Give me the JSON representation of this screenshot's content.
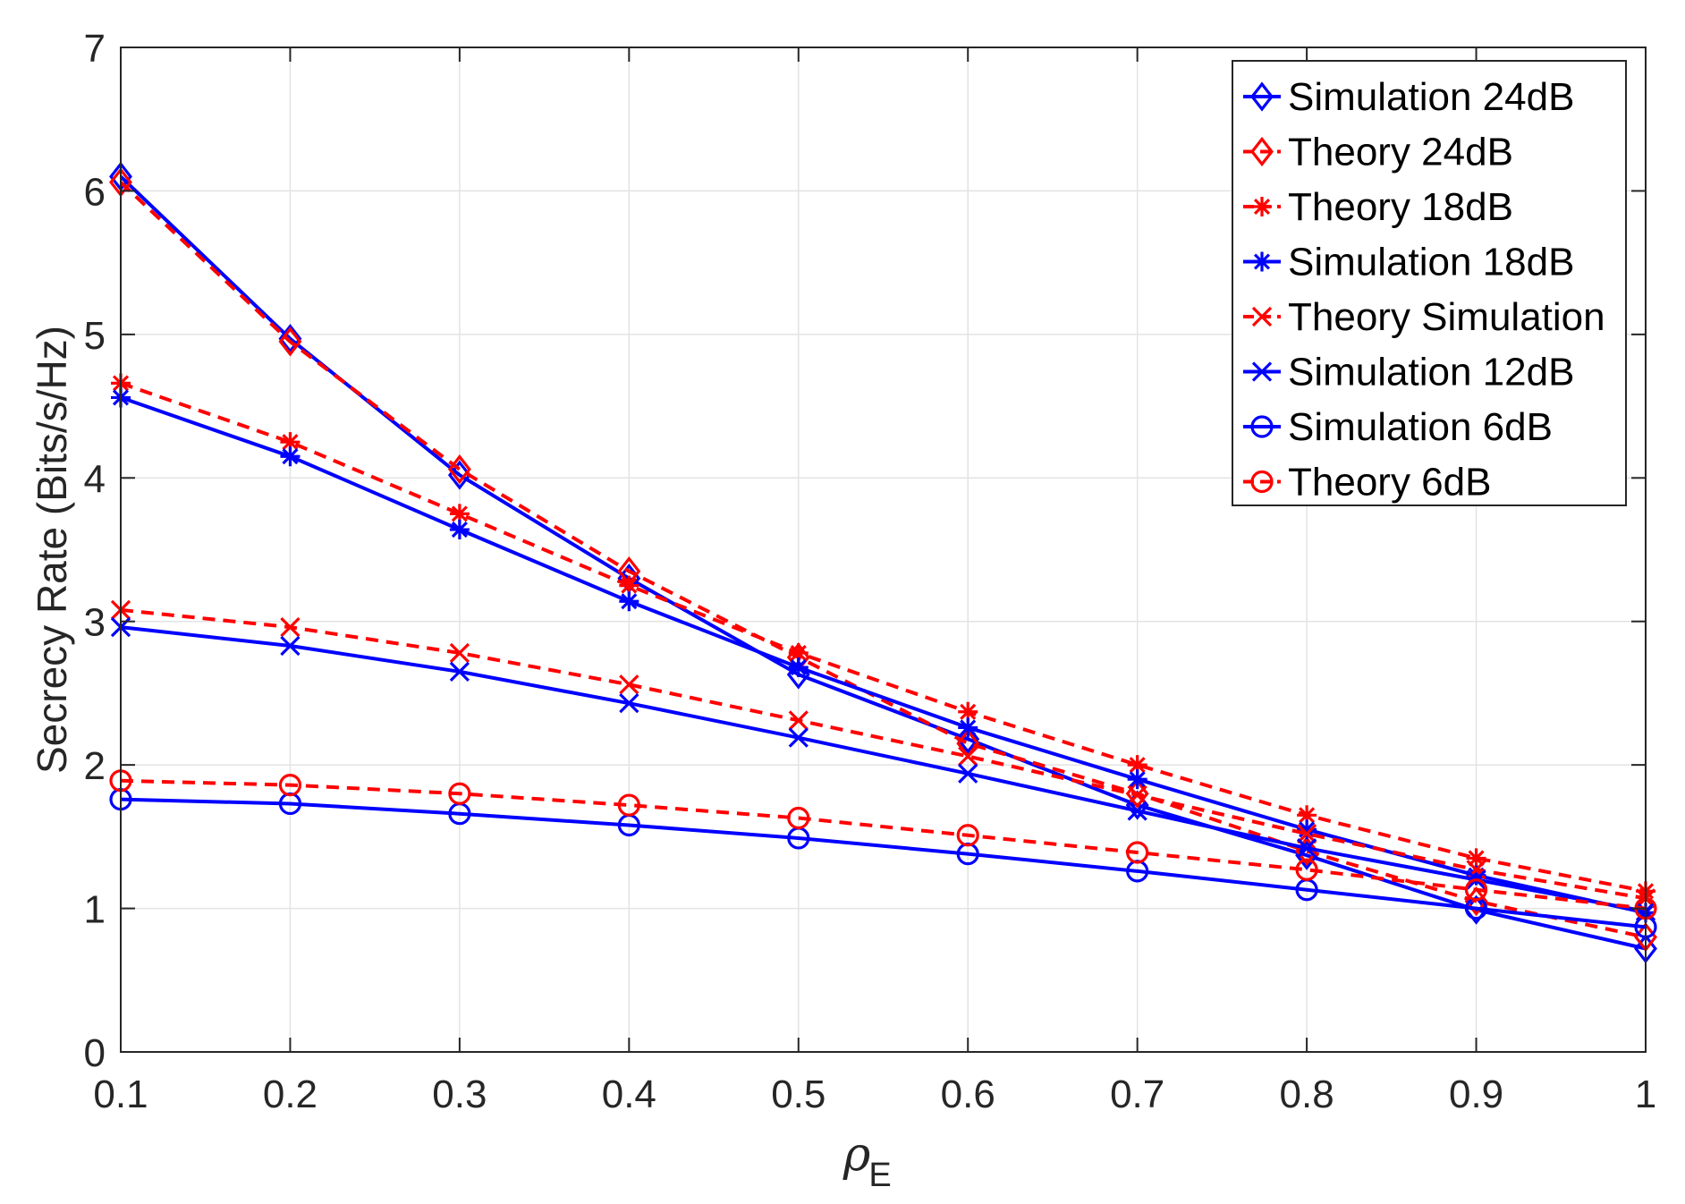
{
  "chart_data": {
    "type": "line",
    "title": "",
    "xlabel": {
      "symbol": "ρ",
      "subscript": "E"
    },
    "ylabel": "Secrecy Rate (Bits/s/Hz)",
    "xlim": [
      0.1,
      1
    ],
    "ylim": [
      0,
      7
    ],
    "grid": true,
    "legend_position": "top-right",
    "x": [
      0.1,
      0.2,
      0.3,
      0.4,
      0.5,
      0.6,
      0.7,
      0.8,
      0.9,
      1.0
    ],
    "x_ticks": [
      "0.1",
      "0.2",
      "0.3",
      "0.4",
      "0.5",
      "0.6",
      "0.7",
      "0.8",
      "0.9",
      "1"
    ],
    "y_ticks": [
      "0",
      "1",
      "2",
      "3",
      "4",
      "5",
      "6",
      "7"
    ],
    "series": [
      {
        "name": "Simulation 24dB",
        "color": "#0000ff",
        "dashed": false,
        "marker": "diamond",
        "values": [
          6.1,
          4.97,
          4.02,
          3.3,
          2.63,
          2.18,
          1.72,
          1.37,
          0.99,
          0.72
        ]
      },
      {
        "name": "Theory 24dB",
        "color": "#ff0000",
        "dashed": true,
        "marker": "diamond",
        "values": [
          6.06,
          4.95,
          4.06,
          3.35,
          2.75,
          2.15,
          1.8,
          1.4,
          1.05,
          0.8
        ]
      },
      {
        "name": "Theory 18dB",
        "color": "#ff0000",
        "dashed": true,
        "marker": "star",
        "values": [
          4.66,
          4.25,
          3.75,
          3.25,
          2.78,
          2.37,
          2.0,
          1.65,
          1.35,
          1.12
        ]
      },
      {
        "name": "Simulation 18dB",
        "color": "#0000ff",
        "dashed": false,
        "marker": "star",
        "values": [
          4.56,
          4.15,
          3.64,
          3.14,
          2.68,
          2.26,
          1.9,
          1.55,
          1.23,
          0.97
        ]
      },
      {
        "name": "Theory Simulation",
        "color": "#ff0000",
        "dashed": true,
        "marker": "x",
        "values": [
          3.08,
          2.96,
          2.78,
          2.56,
          2.31,
          2.06,
          1.79,
          1.52,
          1.27,
          1.07
        ]
      },
      {
        "name": "Simulation 12dB",
        "color": "#0000ff",
        "dashed": false,
        "marker": "x",
        "values": [
          2.96,
          2.83,
          2.65,
          2.43,
          2.19,
          1.94,
          1.68,
          1.42,
          1.2,
          0.98
        ]
      },
      {
        "name": "Simulation 6dB",
        "color": "#0000ff",
        "dashed": false,
        "marker": "circle",
        "values": [
          1.76,
          1.73,
          1.66,
          1.58,
          1.49,
          1.38,
          1.26,
          1.13,
          1.0,
          0.87
        ]
      },
      {
        "name": "Theory 6dB",
        "color": "#ff0000",
        "dashed": true,
        "marker": "circle",
        "values": [
          1.89,
          1.86,
          1.8,
          1.72,
          1.63,
          1.51,
          1.39,
          1.27,
          1.13,
          1.0
        ]
      }
    ]
  }
}
